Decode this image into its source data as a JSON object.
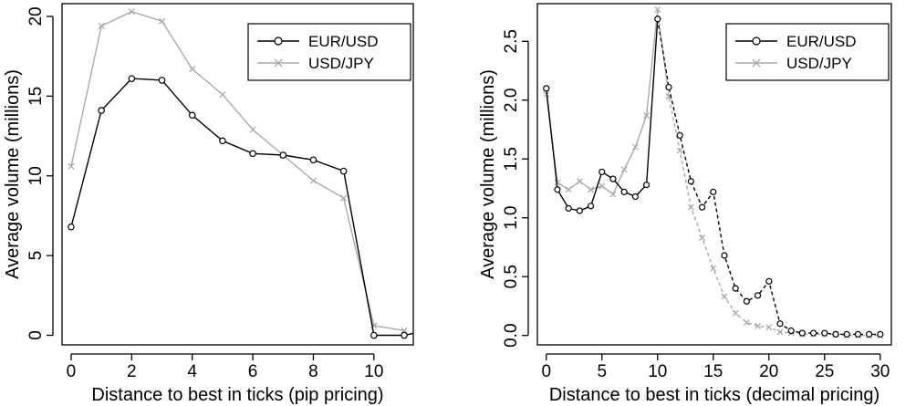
{
  "chart_data": [
    {
      "type": "line",
      "xlabel": "Distance to best in ticks (pip pricing)",
      "ylabel": "Average volume (millions)",
      "xlim": [
        -0.3,
        11.3
      ],
      "ylim": [
        -0.6,
        20.8
      ],
      "xticks": [
        0,
        2,
        4,
        6,
        8,
        10
      ],
      "yticks": [
        0,
        5,
        10,
        15,
        20
      ],
      "grid": false,
      "legend_position": "top-right",
      "series": [
        {
          "name": "EUR/USD",
          "marker": "circle",
          "color": "#000000",
          "x": [
            0,
            1,
            2,
            3,
            4,
            5,
            6,
            7,
            8,
            9,
            10,
            11,
            11.5
          ],
          "y": [
            6.8,
            14.1,
            16.1,
            16.0,
            13.8,
            12.2,
            11.4,
            11.3,
            11.0,
            10.3,
            0.0,
            0.0,
            0.2
          ]
        },
        {
          "name": "USD/JPY",
          "marker": "cross",
          "color": "#aaaaaa",
          "x": [
            0,
            1,
            2,
            3,
            4,
            5,
            6,
            7,
            8,
            9,
            10,
            11
          ],
          "y": [
            10.6,
            19.4,
            20.3,
            19.7,
            16.7,
            15.1,
            12.9,
            11.3,
            9.7,
            8.6,
            0.6,
            0.3
          ]
        }
      ]
    },
    {
      "type": "line",
      "xlabel": "Distance to best in ticks (decimal pricing)",
      "ylabel": "Average volume (millions)",
      "xlim": [
        -0.8,
        31.0
      ],
      "ylim": [
        -0.08,
        2.82
      ],
      "xticks": [
        0,
        5,
        10,
        15,
        20,
        25,
        30
      ],
      "yticks": [
        0.0,
        0.5,
        1.0,
        1.5,
        2.0,
        2.5
      ],
      "ytick_labels": [
        "0.0",
        "0.5",
        "1.0",
        "1.5",
        "2.0",
        "2.5"
      ],
      "grid": false,
      "legend_position": "top-right",
      "series": [
        {
          "name": "EUR/USD",
          "marker": "circle",
          "color": "#000000",
          "solid_until_x": 10,
          "x": [
            0,
            1,
            2,
            3,
            4,
            5,
            6,
            7,
            8,
            9,
            10,
            11,
            12,
            13,
            14,
            15,
            16,
            17,
            18,
            19,
            20,
            21,
            22,
            23,
            24,
            25,
            26,
            27,
            28,
            29,
            30
          ],
          "y": [
            2.1,
            1.24,
            1.08,
            1.06,
            1.1,
            1.39,
            1.33,
            1.22,
            1.18,
            1.28,
            2.69,
            2.11,
            1.7,
            1.31,
            1.09,
            1.22,
            0.68,
            0.4,
            0.29,
            0.34,
            0.46,
            0.1,
            0.04,
            0.02,
            0.02,
            0.02,
            0.01,
            0.01,
            0.01,
            0.01,
            0.01
          ]
        },
        {
          "name": "USD/JPY",
          "marker": "cross",
          "color": "#aaaaaa",
          "solid_until_x": 10,
          "x": [
            0,
            1,
            2,
            3,
            4,
            5,
            6,
            7,
            8,
            9,
            10,
            11,
            12,
            13,
            14,
            15,
            16,
            17,
            18,
            19,
            20,
            21,
            22,
            23,
            24,
            25,
            26,
            27,
            28,
            29,
            30
          ],
          "y": [
            2.05,
            1.3,
            1.24,
            1.31,
            1.24,
            1.27,
            1.2,
            1.41,
            1.6,
            1.87,
            2.77,
            2.03,
            1.57,
            1.09,
            0.83,
            0.57,
            0.33,
            0.19,
            0.11,
            0.08,
            0.07,
            0.03,
            0.02,
            0.01,
            0.01,
            0.01,
            0.01,
            0.0,
            0.0,
            0.0,
            0.0
          ]
        }
      ]
    }
  ]
}
